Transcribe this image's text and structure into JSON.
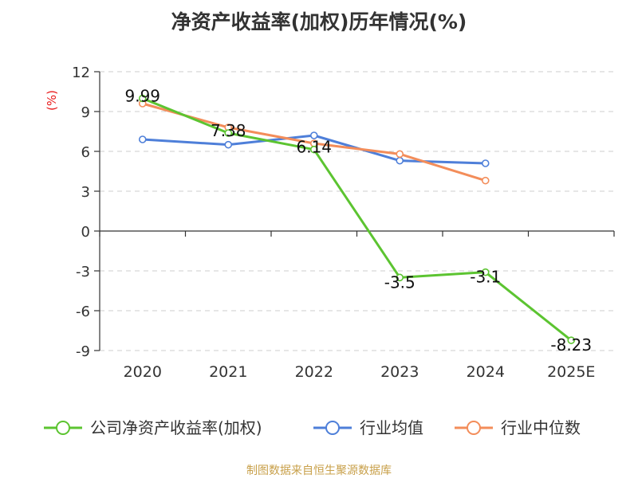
{
  "chart_data": {
    "type": "line",
    "title": "净资产收益率(加权)历年情况(%)",
    "ylabel": "(%)",
    "xlabel": "",
    "ylim": [
      -9,
      12
    ],
    "yticks": [
      12,
      9,
      6,
      3,
      0,
      -3,
      -6,
      -9
    ],
    "categories": [
      "2020",
      "2021",
      "2022",
      "2023",
      "2024",
      "2025E"
    ],
    "series": [
      {
        "name": "公司净资产收益率(加权)",
        "color": "#5cc431",
        "values": [
          9.99,
          7.38,
          6.14,
          -3.5,
          -3.1,
          -8.23
        ],
        "labels": [
          "9.99",
          "7.38",
          "6.14",
          "-3.5",
          "-3.1",
          "-8.23"
        ]
      },
      {
        "name": "行业均值",
        "color": "#4e7fd9",
        "values": [
          6.9,
          6.5,
          7.2,
          5.3,
          5.1,
          null
        ]
      },
      {
        "name": "行业中位数",
        "color": "#f38d5a",
        "values": [
          9.6,
          7.8,
          6.6,
          5.8,
          3.8,
          null
        ]
      }
    ],
    "grid": true,
    "legend_position": "bottom"
  },
  "source": "制图数据来自恒生聚源数据库"
}
